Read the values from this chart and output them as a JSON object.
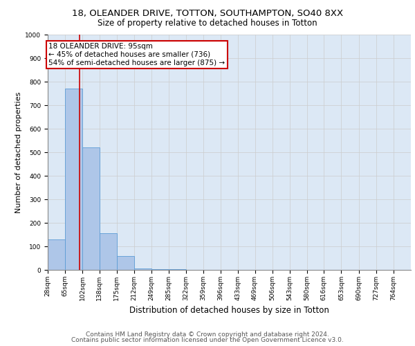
{
  "title1": "18, OLEANDER DRIVE, TOTTON, SOUTHAMPTON, SO40 8XX",
  "title2": "Size of property relative to detached houses in Totton",
  "xlabel": "Distribution of detached houses by size in Totton",
  "ylabel": "Number of detached properties",
  "footer1": "Contains HM Land Registry data © Crown copyright and database right 2024.",
  "footer2": "Contains public sector information licensed under the Open Government Licence v3.0.",
  "bin_labels": [
    "28sqm",
    "65sqm",
    "102sqm",
    "138sqm",
    "175sqm",
    "212sqm",
    "249sqm",
    "285sqm",
    "322sqm",
    "359sqm",
    "396sqm",
    "433sqm",
    "469sqm",
    "506sqm",
    "543sqm",
    "580sqm",
    "616sqm",
    "653sqm",
    "690sqm",
    "727sqm",
    "764sqm"
  ],
  "bin_edges": [
    28,
    65,
    102,
    138,
    175,
    212,
    249,
    285,
    322,
    359,
    396,
    433,
    469,
    506,
    543,
    580,
    616,
    653,
    690,
    727,
    764
  ],
  "bar_values": [
    130,
    770,
    520,
    155,
    60,
    5,
    3,
    2,
    1,
    1,
    1,
    1,
    1,
    0,
    0,
    0,
    0,
    0,
    0,
    0
  ],
  "bar_color": "#aec6e8",
  "bar_edge_color": "#5b9bd5",
  "vline_x": 95,
  "vline_color": "#cc0000",
  "annotation_text": "18 OLEANDER DRIVE: 95sqm\n← 45% of detached houses are smaller (736)\n54% of semi-detached houses are larger (875) →",
  "annotation_box_color": "#cc0000",
  "annotation_fill": "#ffffff",
  "ylim": [
    0,
    1000
  ],
  "yticks": [
    0,
    100,
    200,
    300,
    400,
    500,
    600,
    700,
    800,
    900,
    1000
  ],
  "grid_color": "#cccccc",
  "bg_color": "#dce8f5",
  "title1_fontsize": 9.5,
  "title2_fontsize": 8.5,
  "xlabel_fontsize": 8.5,
  "ylabel_fontsize": 8,
  "tick_fontsize": 6.5,
  "annotation_fontsize": 7.5,
  "footer_fontsize": 6.5
}
